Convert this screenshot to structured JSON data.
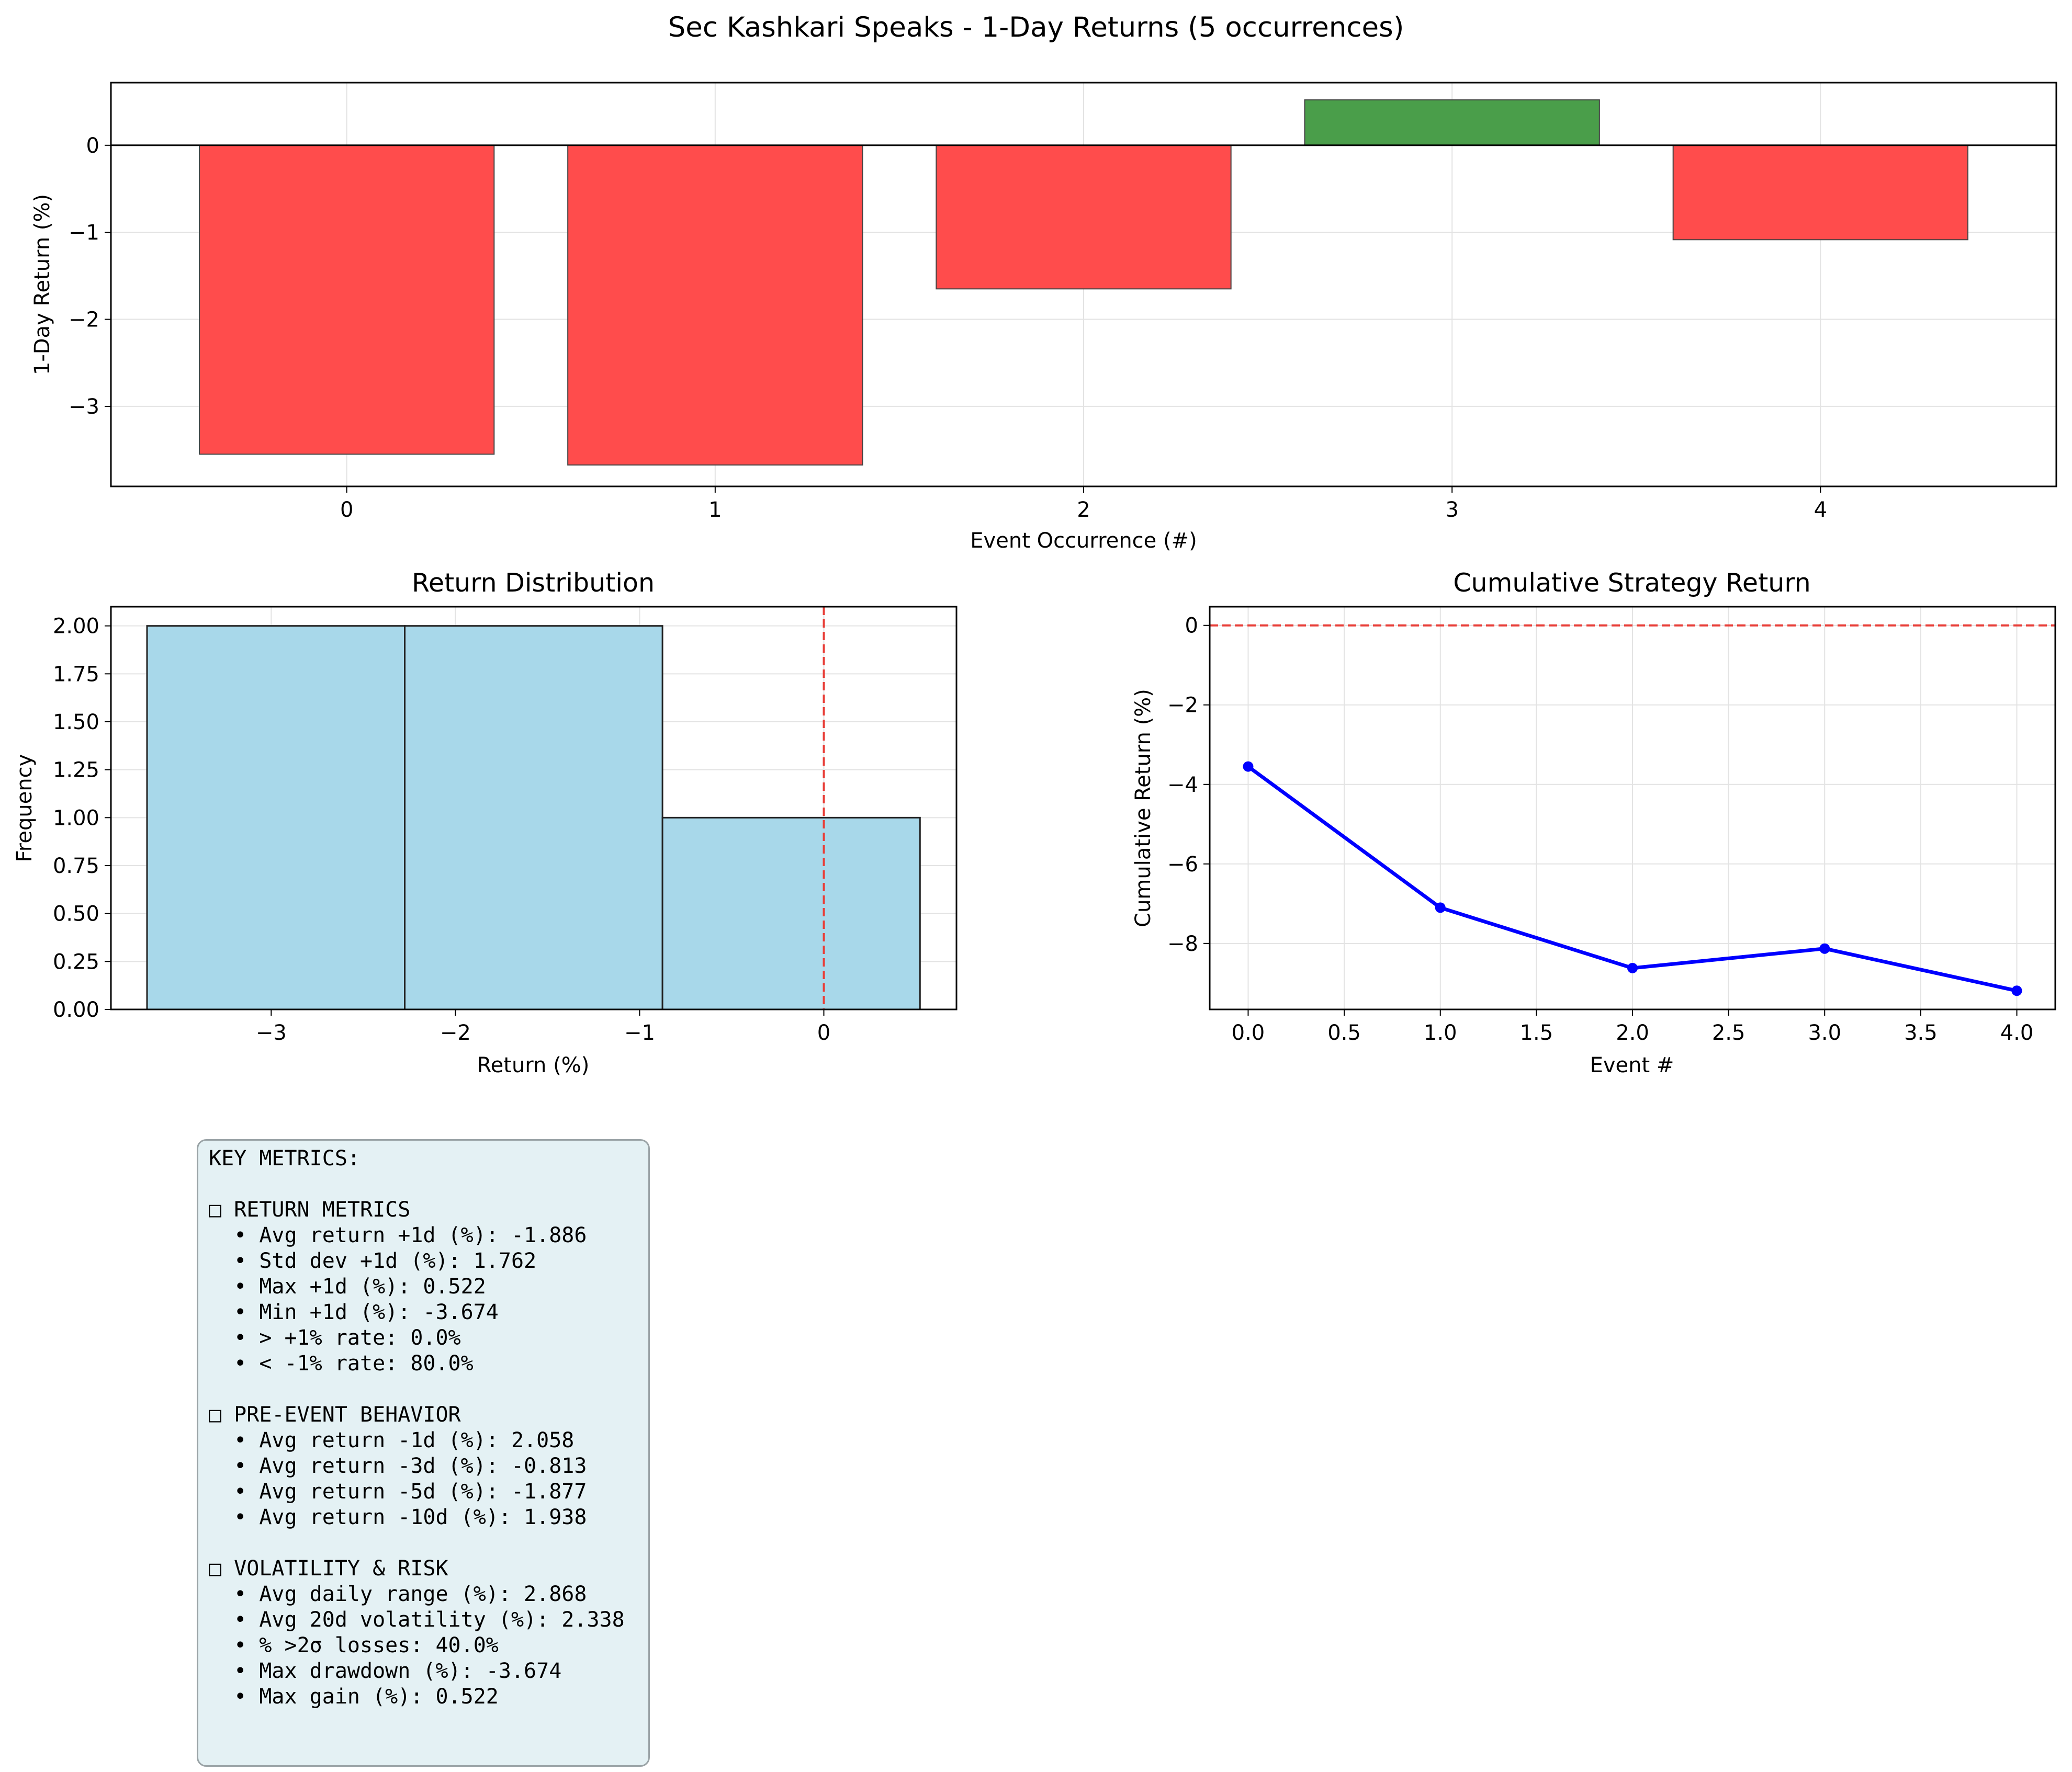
{
  "chart_data": [
    {
      "type": "bar",
      "title": "Sec Kashkari Speaks - 1-Day Returns (5 occurrences)",
      "xlabel": "Event Occurrence (#)",
      "ylabel": "1-Day Return (%)",
      "categories": [
        "0",
        "1",
        "2",
        "3",
        "4"
      ],
      "values": [
        -3.55,
        -3.674,
        -1.65,
        0.522,
        -1.085
      ],
      "colors": {
        "positive": "#4a9e4a",
        "negative": "#ff4c4c"
      },
      "xlim": [
        -0.64,
        4.64
      ],
      "ylim": [
        -3.92,
        0.72
      ],
      "yticks": [
        0,
        -1,
        -2,
        -3
      ],
      "ytick_labels": [
        "0",
        "−1",
        "−2",
        "−3"
      ],
      "grid": true
    },
    {
      "type": "histogram",
      "title": "Return Distribution",
      "xlabel": "Return (%)",
      "ylabel": "Frequency",
      "bins": [
        {
          "start": -3.674,
          "end": -2.275,
          "count": 2
        },
        {
          "start": -2.275,
          "end": -0.876,
          "count": 2
        },
        {
          "start": -0.876,
          "end": 0.522,
          "count": 1
        }
      ],
      "reference_line_x": 0,
      "bar_color": "#a8d8ea",
      "reference_line_color": "#e8403a",
      "xlim": [
        -3.87,
        0.72
      ],
      "ylim": [
        0,
        2.1
      ],
      "xticks": [
        -3,
        -2,
        -1,
        0
      ],
      "xtick_labels": [
        "−3",
        "−2",
        "−1",
        "0"
      ],
      "yticks": [
        0,
        0.25,
        0.5,
        0.75,
        1.0,
        1.25,
        1.5,
        1.75,
        2.0
      ],
      "ytick_labels": [
        "0.00",
        "0.25",
        "0.50",
        "0.75",
        "1.00",
        "1.25",
        "1.50",
        "1.75",
        "2.00"
      ],
      "grid": true
    },
    {
      "type": "line",
      "title": "Cumulative Strategy Return",
      "xlabel": "Event #",
      "ylabel": "Cumulative Return (%)",
      "x": [
        0,
        1,
        2,
        3,
        4
      ],
      "y": [
        -3.55,
        -7.1,
        -8.62,
        -8.13,
        -9.19
      ],
      "reference_line_y": 0,
      "line_color": "#0000ff",
      "reference_line_color": "#e8403a",
      "xlim": [
        -0.2,
        4.2
      ],
      "ylim": [
        -9.66,
        0.47
      ],
      "xticks": [
        0,
        0.5,
        1.0,
        1.5,
        2.0,
        2.5,
        3.0,
        3.5,
        4.0
      ],
      "xtick_labels": [
        "0.0",
        "0.5",
        "1.0",
        "1.5",
        "2.0",
        "2.5",
        "3.0",
        "3.5",
        "4.0"
      ],
      "yticks": [
        0,
        -2,
        -4,
        -6,
        -8
      ],
      "ytick_labels": [
        "0",
        "−2",
        "−4",
        "−6",
        "−8"
      ],
      "grid": true
    }
  ],
  "metrics": {
    "lines": [
      "KEY METRICS:",
      "",
      "□ RETURN METRICS",
      "  • Avg return +1d (%): -1.886",
      "  • Std dev +1d (%): 1.762",
      "  • Max +1d (%): 0.522",
      "  • Min +1d (%): -3.674",
      "  • > +1% rate: 0.0%",
      "  • < -1% rate: 80.0%",
      "",
      "□ PRE-EVENT BEHAVIOR",
      "  • Avg return -1d (%): 2.058",
      "  • Avg return -3d (%): -0.813",
      "  • Avg return -5d (%): -1.877",
      "  • Avg return -10d (%): 1.938",
      "",
      "□ VOLATILITY & RISK",
      "  • Avg daily range (%): 2.868",
      "  • Avg 20d volatility (%): 2.338",
      "  • % >2σ losses: 40.0%",
      "  • Max drawdown (%): -3.674",
      "  • Max gain (%): 0.522"
    ]
  }
}
